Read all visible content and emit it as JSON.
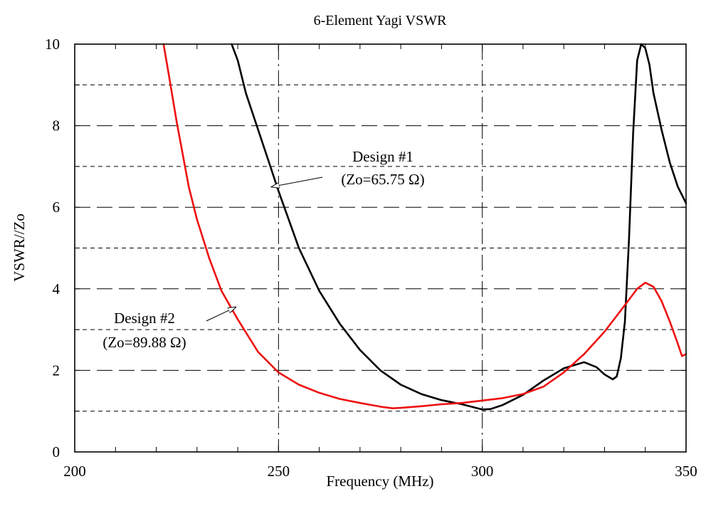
{
  "chart_data": {
    "type": "line",
    "title": "6-Element Yagi VSWR",
    "xlabel": "Frequency (MHz)",
    "ylabel": "VSWR//Zo",
    "xlim": [
      200,
      350
    ],
    "ylim": [
      0,
      10
    ],
    "x_ticks": [
      200,
      250,
      300,
      350
    ],
    "y_ticks": [
      0,
      2,
      4,
      6,
      8,
      10
    ],
    "grid": "on (dashed)",
    "series": [
      {
        "name": "Design #1",
        "color": "#000000",
        "x": [
          238.5,
          240,
          242,
          245,
          248,
          250,
          255,
          260,
          265,
          270,
          275,
          280,
          285,
          290,
          295,
          300,
          302,
          305,
          310,
          315,
          320,
          325,
          328,
          330,
          332,
          333,
          334,
          335,
          336,
          337,
          338,
          339,
          340,
          341,
          342,
          344,
          346,
          348,
          350
        ],
        "y": [
          10.0,
          9.6,
          8.8,
          7.9,
          7.0,
          6.4,
          5.0,
          3.95,
          3.15,
          2.5,
          2.0,
          1.65,
          1.42,
          1.27,
          1.17,
          1.04,
          1.05,
          1.15,
          1.4,
          1.75,
          2.05,
          2.2,
          2.08,
          1.9,
          1.78,
          1.85,
          2.3,
          3.2,
          5.2,
          7.8,
          9.6,
          10.0,
          9.9,
          9.5,
          8.8,
          7.9,
          7.1,
          6.5,
          6.1
        ]
      },
      {
        "name": "Design #2",
        "color": "#ee1111",
        "x": [
          221.8,
          223,
          225,
          228,
          230,
          233,
          236,
          240,
          245,
          250,
          255,
          260,
          265,
          270,
          275,
          278,
          280,
          285,
          290,
          295,
          300,
          305,
          310,
          315,
          320,
          325,
          330,
          335,
          338,
          340,
          342,
          344,
          346,
          348,
          349,
          350
        ],
        "y": [
          10.0,
          9.3,
          8.1,
          6.5,
          5.7,
          4.75,
          3.95,
          3.25,
          2.45,
          1.95,
          1.65,
          1.45,
          1.3,
          1.2,
          1.11,
          1.07,
          1.08,
          1.12,
          1.17,
          1.2,
          1.26,
          1.32,
          1.42,
          1.6,
          1.95,
          2.4,
          2.95,
          3.6,
          4.0,
          4.15,
          4.05,
          3.7,
          3.2,
          2.65,
          2.35,
          2.4
        ]
      }
    ],
    "annotations": [
      {
        "line1": "Design #1",
        "line2": "(Zo=65.75 Ω)",
        "points_to": [
          248.3,
          6.5
        ]
      },
      {
        "line1": "Design #2",
        "line2": "(Zo=89.88 Ω)",
        "points_to": [
          239.5,
          3.55
        ]
      }
    ]
  }
}
